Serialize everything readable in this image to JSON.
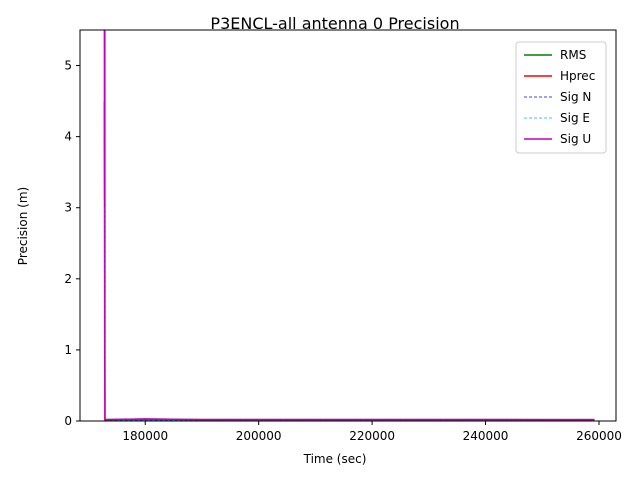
{
  "chart_data": {
    "type": "line",
    "title": "P3ENCL-all antenna 0 Precision",
    "xlabel": "Time (sec)",
    "ylabel": "Precision (m)",
    "xlim": [
      168500,
      263000
    ],
    "ylim": [
      0,
      5.5
    ],
    "xticks": [
      180000,
      200000,
      220000,
      240000,
      260000
    ],
    "yticks": [
      0,
      1,
      2,
      3,
      4,
      5
    ],
    "grid": false,
    "legend_position": "top-right",
    "series": [
      {
        "name": "RMS",
        "color": "#008000",
        "dash": "solid",
        "x": [
          172800,
          172900,
          180000,
          200000,
          220000,
          240000,
          259200
        ],
        "y": [
          0.02,
          0.02,
          0.02,
          0.02,
          0.02,
          0.02,
          0.02
        ]
      },
      {
        "name": "Hprec",
        "color": "#ff0000",
        "dash": "solid",
        "x": [
          172800,
          172850,
          172900,
          180000,
          200000,
          220000,
          240000,
          259200
        ],
        "y": [
          4.5,
          1.2,
          0.02,
          0.02,
          0.02,
          0.02,
          0.02,
          0.02
        ]
      },
      {
        "name": "Sig N",
        "color": "#0000ff",
        "dash": "dashed",
        "x": [
          172800,
          172850,
          172900,
          180000,
          200000,
          220000,
          240000,
          259200
        ],
        "y": [
          3.2,
          0.8,
          0.01,
          0.01,
          0.01,
          0.01,
          0.01,
          0.01
        ]
      },
      {
        "name": "Sig E",
        "color": "#00bfbf",
        "dash": "dashed",
        "x": [
          172800,
          172850,
          172900,
          180000,
          200000,
          220000,
          240000,
          259200
        ],
        "y": [
          3.0,
          0.8,
          0.01,
          0.01,
          0.01,
          0.01,
          0.01,
          0.01
        ]
      },
      {
        "name": "Sig U",
        "color": "#bf00bf",
        "dash": "solid",
        "x": [
          172800,
          172820,
          172850,
          172880,
          172900,
          180000,
          190000,
          200000,
          220000,
          240000,
          259200
        ],
        "y": [
          5.5,
          3.8,
          3.1,
          5.5,
          0.02,
          0.03,
          0.02,
          0.02,
          0.02,
          0.02,
          0.015
        ]
      }
    ]
  }
}
